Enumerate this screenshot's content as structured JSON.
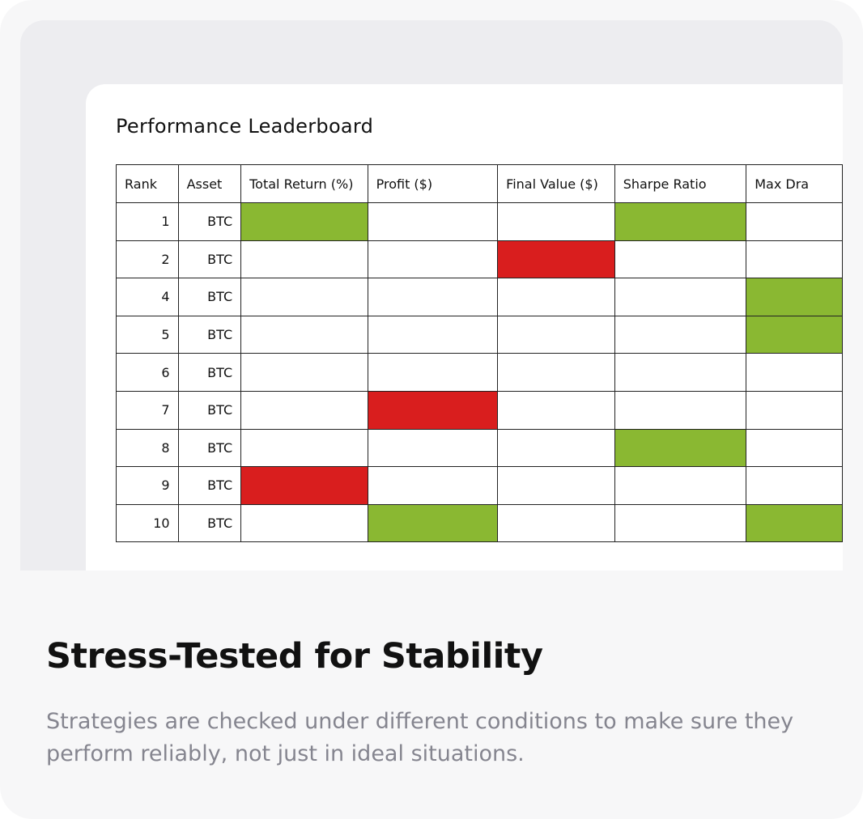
{
  "panel": {
    "title": "Performance Leaderboard",
    "headers": [
      "Rank",
      "Asset",
      "Total Return (%)",
      "Profit ($)",
      "Final Value ($)",
      "Sharpe Ratio",
      "Max Dra"
    ],
    "rows": [
      {
        "rank": 1,
        "asset": "BTC",
        "cells": [
          "#8ab832",
          null,
          null,
          "#8ab832",
          null
        ]
      },
      {
        "rank": 2,
        "asset": "BTC",
        "cells": [
          null,
          null,
          "#d91e1e",
          null,
          null
        ]
      },
      {
        "rank": 4,
        "asset": "BTC",
        "cells": [
          null,
          null,
          null,
          null,
          "#8ab832"
        ]
      },
      {
        "rank": 5,
        "asset": "BTC",
        "cells": [
          null,
          null,
          null,
          null,
          "#8ab832"
        ]
      },
      {
        "rank": 6,
        "asset": "BTC",
        "cells": [
          null,
          null,
          null,
          null,
          null
        ]
      },
      {
        "rank": 7,
        "asset": "BTC",
        "cells": [
          null,
          "#d91e1e",
          null,
          null,
          null
        ]
      },
      {
        "rank": 8,
        "asset": "BTC",
        "cells": [
          null,
          null,
          null,
          "#8ab832",
          null
        ]
      },
      {
        "rank": 9,
        "asset": "BTC",
        "cells": [
          "#d91e1e",
          null,
          null,
          null,
          null
        ]
      },
      {
        "rank": 10,
        "asset": "BTC",
        "cells": [
          null,
          "#8ab832",
          null,
          null,
          "#8ab832"
        ]
      }
    ]
  },
  "heading": "Stress-Tested for Stability",
  "description": "Strategies are checked under different conditions to make sure they perform reliably, not just in ideal situations."
}
